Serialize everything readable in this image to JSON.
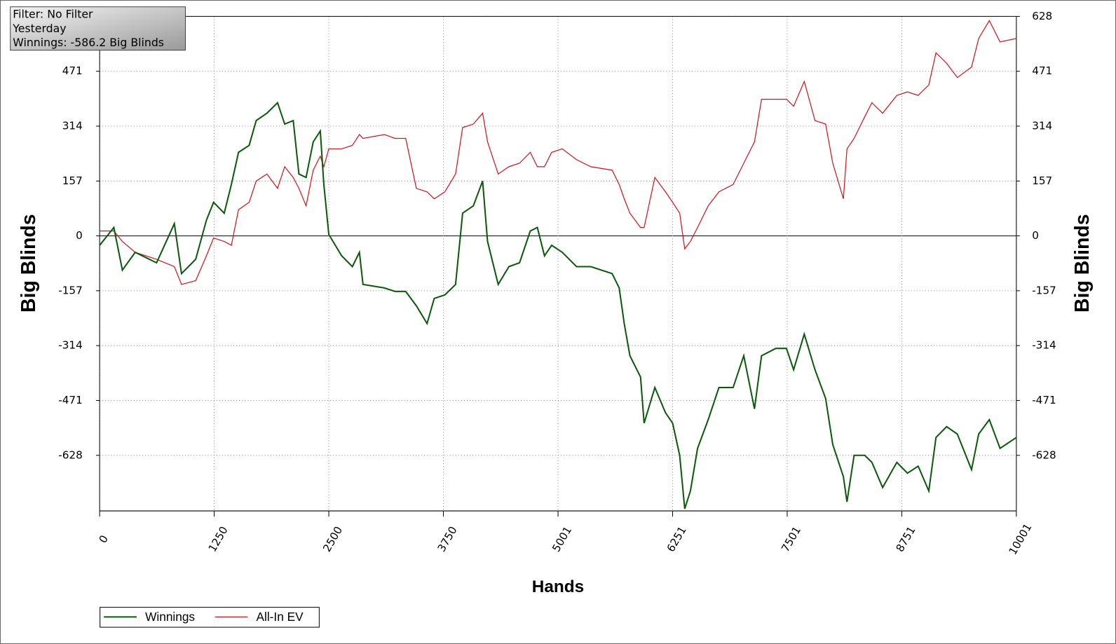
{
  "chart_data": {
    "type": "line",
    "info": [
      "Filter: No Filter",
      "Yesterday",
      "Winnings: -586.2 Big Blinds"
    ],
    "ylabel": "Big Blinds",
    "y2label": "Big Blinds",
    "xlabel": "Hands",
    "xlim": [
      0,
      10001
    ],
    "xticks": [
      0,
      1250,
      2500,
      3750,
      5001,
      6251,
      7501,
      8751,
      10001
    ],
    "ylim": [
      -787,
      628
    ],
    "yticks": [
      -628,
      -471,
      -314,
      -157,
      0,
      157,
      314,
      471,
      628
    ],
    "y2lim": [
      -787,
      628
    ],
    "y2ticks": [
      -628,
      -471,
      -314,
      -157,
      0,
      157,
      314,
      471,
      628
    ],
    "grid": true,
    "x": [
      0,
      155,
      248,
      388,
      621,
      815,
      893,
      1048,
      1165,
      1243,
      1359,
      1437,
      1515,
      1631,
      1708,
      1825,
      1941,
      2019,
      2112,
      2174,
      2252,
      2330,
      2407,
      2446,
      2500,
      2640,
      2757,
      2834,
      2873,
      3106,
      3222,
      3339,
      3455,
      3572,
      3650,
      3766,
      3883,
      3960,
      4077,
      4178,
      4232,
      4348,
      4465,
      4581,
      4698,
      4775,
      4853,
      4931,
      5047,
      5203,
      5358,
      5591,
      5668,
      5723,
      5785,
      5901,
      5940,
      6057,
      6173,
      6251,
      6328,
      6383,
      6445,
      6523,
      6639,
      6756,
      6911,
      7027,
      7144,
      7221,
      7377,
      7493,
      7571,
      7687,
      7804,
      7920,
      7998,
      8114,
      8153,
      8231,
      8347,
      8425,
      8542,
      8697,
      8813,
      8930,
      9046,
      9124,
      9240,
      9357,
      9512,
      9590,
      9706,
      9823,
      10001
    ],
    "series": [
      {
        "name": "Winnings",
        "color": "#0b5a0b",
        "values": [
          -27,
          24,
          -98,
          -47,
          -77,
          35,
          -108,
          -67,
          45,
          96,
          65,
          147,
          239,
          259,
          330,
          351,
          381,
          320,
          330,
          177,
          167,
          269,
          300,
          147,
          4,
          -57,
          -88,
          -47,
          -139,
          -149,
          -159,
          -159,
          -200,
          -251,
          -179,
          -169,
          -139,
          65,
          86,
          157,
          -16,
          -139,
          -88,
          -77,
          14,
          24,
          -57,
          -27,
          -47,
          -88,
          -88,
          -108,
          -149,
          -251,
          -343,
          -404,
          -536,
          -434,
          -506,
          -536,
          -628,
          -781,
          -730,
          -608,
          -526,
          -434,
          -434,
          -343,
          -495,
          -343,
          -322,
          -322,
          -383,
          -281,
          -383,
          -465,
          -597,
          -689,
          -761,
          -628,
          -628,
          -648,
          -720,
          -648,
          -679,
          -659,
          -730,
          -577,
          -546,
          -567,
          -669,
          -567,
          -526,
          -608,
          -577
        ]
      },
      {
        "name": "All-In EV",
        "color": "#d0141c",
        "values": [
          14,
          14,
          -16,
          -47,
          -67,
          -88,
          -139,
          -128,
          -57,
          -6,
          -16,
          -27,
          75,
          96,
          157,
          177,
          136,
          198,
          167,
          136,
          86,
          188,
          228,
          198,
          249,
          249,
          259,
          290,
          279,
          290,
          279,
          279,
          136,
          126,
          106,
          126,
          177,
          310,
          320,
          351,
          269,
          177,
          198,
          208,
          239,
          198,
          198,
          239,
          249,
          218,
          198,
          188,
          147,
          106,
          65,
          24,
          24,
          167,
          126,
          96,
          65,
          -37,
          -16,
          24,
          86,
          126,
          147,
          208,
          269,
          391,
          391,
          391,
          371,
          442,
          330,
          320,
          208,
          106,
          249,
          279,
          341,
          381,
          351,
          402,
          412,
          402,
          432,
          524,
          494,
          453,
          483,
          565,
          616,
          555,
          565
        ]
      }
    ]
  }
}
